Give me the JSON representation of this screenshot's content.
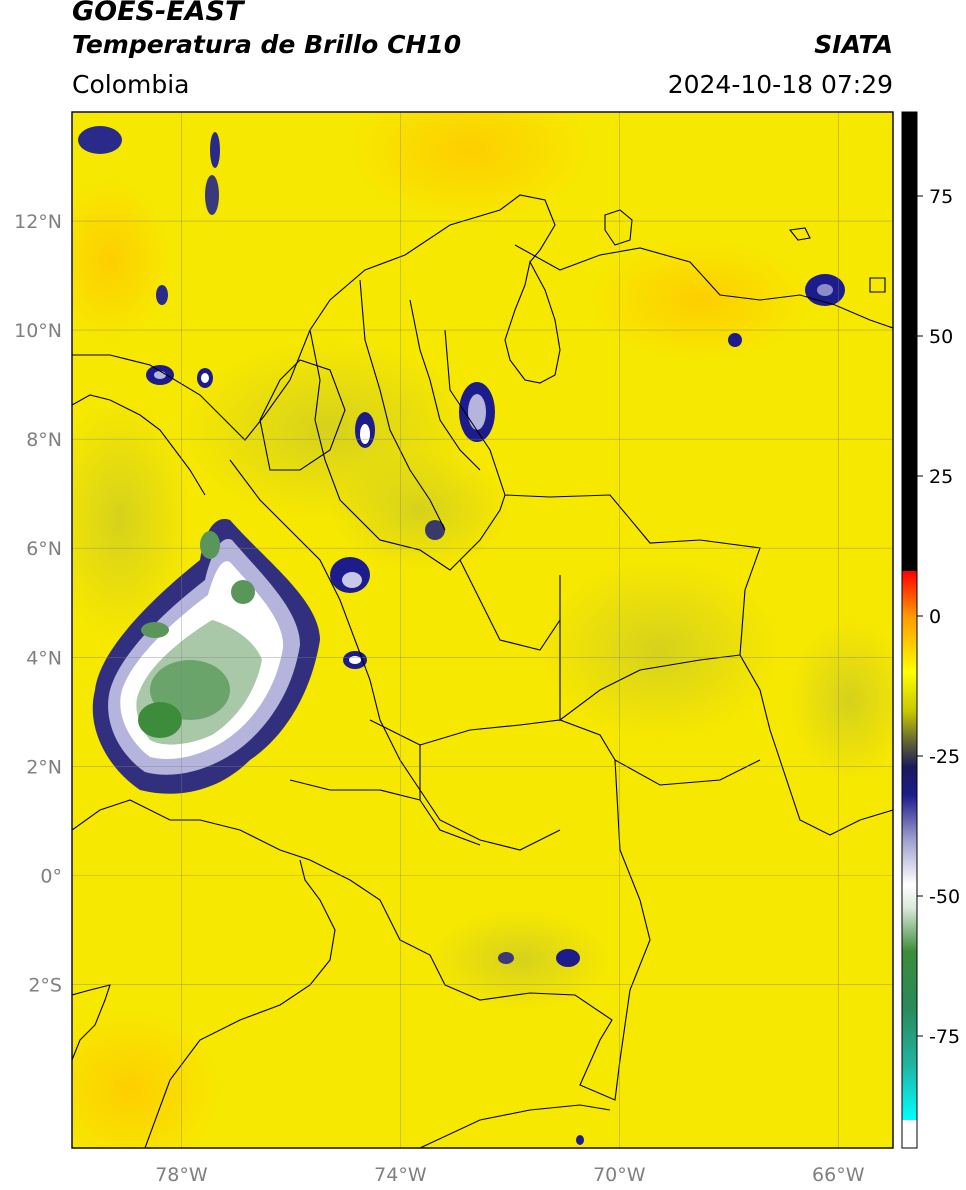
{
  "header": {
    "satellite": "GOES-EAST",
    "product": "Temperatura de Brillo CH10",
    "brand": "SIATA",
    "region": "Colombia",
    "timestamp": "2024-10-18 07:29"
  },
  "map": {
    "lon_range": [
      -80,
      -65
    ],
    "lat_range": [
      -5,
      14
    ],
    "lat_ticks": [
      {
        "value": 12,
        "label": "12°N"
      },
      {
        "value": 10,
        "label": "10°N"
      },
      {
        "value": 8,
        "label": "8°N"
      },
      {
        "value": 6,
        "label": "6°N"
      },
      {
        "value": 4,
        "label": "4°N"
      },
      {
        "value": 2,
        "label": "2°N"
      },
      {
        "value": 0,
        "label": "0°"
      },
      {
        "value": -2,
        "label": "2°S"
      }
    ],
    "lon_ticks": [
      {
        "value": -78,
        "label": "78°W"
      },
      {
        "value": -74,
        "label": "74°W"
      },
      {
        "value": -70,
        "label": "70°W"
      },
      {
        "value": -66,
        "label": "66°W"
      }
    ],
    "gridlines": true,
    "background_color": "#f7e800",
    "cold_cloud_colors": [
      "#1c1c8c",
      "#8c8cc8",
      "#ffffff",
      "#c8dcc8",
      "#5a965a",
      "#3c8c3c"
    ]
  },
  "colorbar": {
    "range": [
      -95,
      90
    ],
    "ticks": [
      {
        "value": 75,
        "label": "75"
      },
      {
        "value": 50,
        "label": "50"
      },
      {
        "value": 25,
        "label": "25"
      },
      {
        "value": 0,
        "label": "0"
      },
      {
        "value": -25,
        "label": "-25"
      },
      {
        "value": -50,
        "label": "-50"
      },
      {
        "value": -75,
        "label": "-75"
      }
    ],
    "stops": [
      {
        "value": -95,
        "color": "#ffffff"
      },
      {
        "value": -90,
        "color": "#ffffff"
      },
      {
        "value": -90,
        "color": "#00ffff"
      },
      {
        "value": -80,
        "color": "#20b4a0"
      },
      {
        "value": -70,
        "color": "#2a8a5a"
      },
      {
        "value": -60,
        "color": "#3c8c3c"
      },
      {
        "value": -52,
        "color": "#dceadc"
      },
      {
        "value": -48,
        "color": "#ffffff"
      },
      {
        "value": -40,
        "color": "#a0a0d0"
      },
      {
        "value": -32,
        "color": "#1c1c8c"
      },
      {
        "value": -27,
        "color": "#1a1a5a"
      },
      {
        "value": -23,
        "color": "#5a5a3a"
      },
      {
        "value": -17,
        "color": "#c8c800"
      },
      {
        "value": -10,
        "color": "#ffff00"
      },
      {
        "value": 0,
        "color": "#ff9a00"
      },
      {
        "value": 8,
        "color": "#ff0000"
      },
      {
        "value": 8,
        "color": "#000000"
      },
      {
        "value": 90,
        "color": "#000000"
      }
    ]
  }
}
